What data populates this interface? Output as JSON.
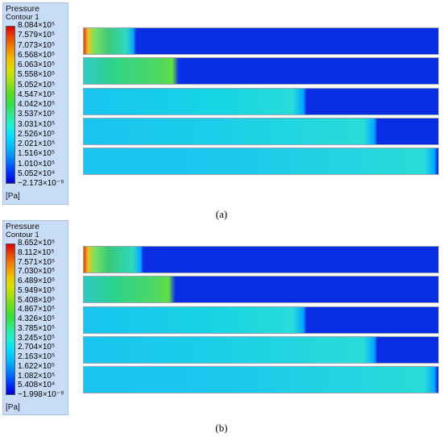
{
  "panels": [
    {
      "caption": "(a)",
      "legend": {
        "title": "Pressure",
        "subtitle": "Contour 1",
        "ticks": [
          "8.084×10⁵",
          "7.579×10⁵",
          "7.073×10⁵",
          "6.568×10⁵",
          "6.063×10⁵",
          "5.558×10⁵",
          "5.052×10⁵",
          "4.547×10⁵",
          "4.042×10⁵",
          "3.537×10⁵",
          "3.031×10⁵",
          "2.526×10⁵",
          "2.021×10⁵",
          "1.516×10⁵",
          "1.010×10⁵",
          "5.052×10⁴",
          "−2.173×10⁻⁹"
        ],
        "unit": "[Pa]"
      },
      "slabs": [
        {
          "front_fraction": 0.14,
          "fill_color": "#3ec87a"
        },
        {
          "front_fraction": 0.26,
          "fill_color": "#2fd38a"
        },
        {
          "front_fraction": 0.62,
          "fill_color": "#16d6e4"
        },
        {
          "front_fraction": 0.82,
          "fill_color": "#1ccfe8"
        },
        {
          "front_fraction": 0.99,
          "fill_color": "#1ac8ee"
        }
      ]
    },
    {
      "caption": "(b)",
      "legend": {
        "title": "Pressure",
        "subtitle": "Contour 1",
        "ticks": [
          "8.652×10⁵",
          "8.112×10⁵",
          "7.571×10⁵",
          "7.030×10⁵",
          "6.489×10⁵",
          "5.949×10⁵",
          "5.408×10⁵",
          "4.867×10⁵",
          "4.326×10⁵",
          "3.785×10⁵",
          "3.245×10⁵",
          "2.704×10⁵",
          "2.163×10⁵",
          "1.622×10⁵",
          "1.082×10⁵",
          "5.408×10⁴",
          "−1.998×10⁻⁹"
        ],
        "unit": "[Pa]"
      },
      "slabs": [
        {
          "front_fraction": 0.16,
          "fill_color": "#38c878"
        },
        {
          "front_fraction": 0.25,
          "fill_color": "#2ad290"
        },
        {
          "front_fraction": 0.62,
          "fill_color": "#18d4e2"
        },
        {
          "front_fraction": 0.82,
          "fill_color": "#1ccfe6"
        },
        {
          "front_fraction": 0.99,
          "fill_color": "#1ac8ee"
        }
      ]
    }
  ],
  "colors": {
    "background_blue": "#0a2ee6",
    "hot_core": "#e83a10",
    "front_edge": "#00a8ff"
  }
}
